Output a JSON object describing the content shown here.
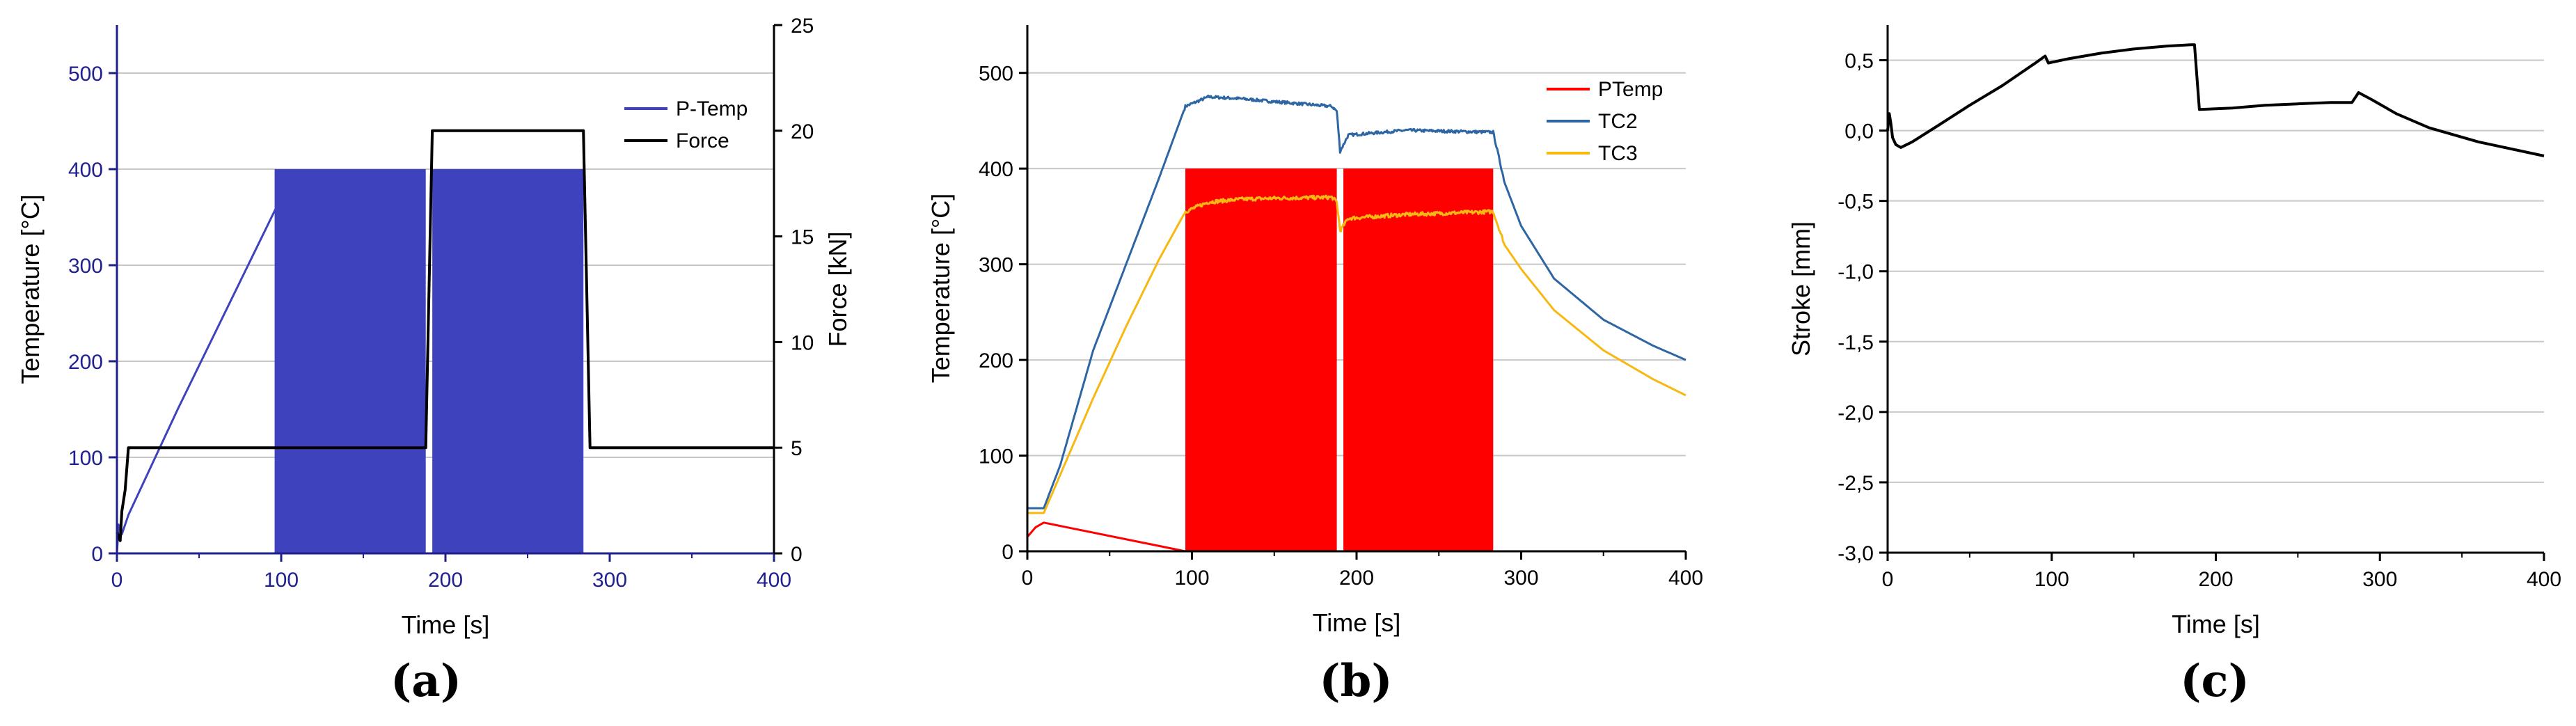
{
  "chart_data": [
    {
      "type": "line",
      "caption": "(a)",
      "xlabel": "Time [s]",
      "ylabel": "Temperature [°C]",
      "y2label": "Force [kN]",
      "xlim": [
        0,
        400
      ],
      "ylim": [
        0,
        550
      ],
      "y2lim": [
        0,
        25
      ],
      "xticks": [
        "0",
        "100",
        "200",
        "300",
        "400"
      ],
      "yticks": [
        "0",
        "100",
        "200",
        "300",
        "400",
        "500"
      ],
      "y2ticks": [
        "0",
        "5",
        "10",
        "15",
        "20",
        "25"
      ],
      "gridlines_y": [
        100,
        200,
        300,
        400,
        500
      ],
      "axis_color": "#1f1f8f",
      "series": [
        {
          "name": "P-Temp",
          "color": "#3f42bd",
          "axis": "left",
          "x": [
            0,
            1,
            3,
            7,
            37,
            97
          ],
          "y": [
            0,
            30,
            20,
            40,
            150,
            360
          ],
          "pulse_bands": [
            {
              "x_start": 96,
              "x_end": 188,
              "y_min": 0,
              "y_max": 400
            },
            {
              "x_start": 192,
              "x_end": 284,
              "y_min": 0,
              "y_max": 400
            }
          ]
        },
        {
          "name": "Force",
          "color": "#000000",
          "axis": "right",
          "x": [
            0,
            2,
            3,
            5,
            7,
            188,
            192,
            284,
            288,
            400
          ],
          "y": [
            1,
            0.6,
            2,
            3,
            5,
            5,
            20,
            20,
            5,
            5
          ]
        }
      ]
    },
    {
      "type": "line",
      "caption": "(b)",
      "xlabel": "Time [s]",
      "ylabel": "Temperature [°C]",
      "xlim": [
        0,
        400
      ],
      "ylim": [
        0,
        550
      ],
      "xticks": [
        "0",
        "100",
        "200",
        "300",
        "400"
      ],
      "yticks": [
        "0",
        "100",
        "200",
        "300",
        "400",
        "500"
      ],
      "gridlines_y": [
        100,
        200,
        300,
        400,
        500
      ],
      "series": [
        {
          "name": "PTemp",
          "color": "#ff0000",
          "x": [
            0,
            5,
            10,
            96,
            96,
            188,
            192,
            283,
            283,
            400
          ],
          "y": [
            15,
            25,
            30,
            0,
            0,
            0,
            0,
            0,
            0,
            0
          ],
          "pulse_bands": [
            {
              "x_start": 96,
              "x_end": 188,
              "y_min": 0,
              "y_max": 400
            },
            {
              "x_start": 192,
              "x_end": 283,
              "y_min": 0,
              "y_max": 400
            }
          ]
        },
        {
          "name": "TC2",
          "color": "#2e66a3",
          "x": [
            0,
            10,
            20,
            40,
            60,
            80,
            96,
            110,
            130,
            150,
            185,
            188,
            190,
            195,
            230,
            283,
            290,
            300,
            320,
            350,
            380,
            400
          ],
          "y": [
            45,
            45,
            90,
            210,
            300,
            390,
            465,
            475,
            473,
            470,
            465,
            460,
            418,
            435,
            440,
            438,
            385,
            340,
            285,
            242,
            215,
            200
          ],
          "noise": 3
        },
        {
          "name": "TC3",
          "color": "#f7b812",
          "x": [
            0,
            10,
            20,
            40,
            60,
            80,
            96,
            110,
            130,
            150,
            185,
            188,
            190,
            195,
            230,
            283,
            290,
            300,
            320,
            350,
            380,
            400
          ],
          "y": [
            40,
            40,
            80,
            160,
            235,
            305,
            355,
            365,
            368,
            369,
            370,
            365,
            335,
            348,
            352,
            355,
            320,
            295,
            252,
            210,
            180,
            163
          ],
          "noise": 4
        }
      ]
    },
    {
      "type": "line",
      "caption": "(c)",
      "xlabel": "Time [s]",
      "ylabel": "Stroke [mm]",
      "xlim": [
        0,
        400
      ],
      "ylim": [
        -3.0,
        0.75
      ],
      "xticks": [
        "0",
        "100",
        "200",
        "300",
        "400"
      ],
      "yticks": [
        "-3,0",
        "-2,5",
        "-2,0",
        "-1,5",
        "-1,0",
        "-0,5",
        "0,0",
        "0,5"
      ],
      "ytick_values": [
        -3.0,
        -2.5,
        -2.0,
        -1.5,
        -1.0,
        -0.5,
        0.0,
        0.5
      ],
      "gridlines_y": [
        -3.0,
        -2.5,
        -2.0,
        -1.5,
        -1.0,
        -0.5,
        0.0,
        0.5
      ],
      "series": [
        {
          "name": "Stroke",
          "color": "#000000",
          "x": [
            0,
            1,
            2,
            3,
            5,
            8,
            15,
            30,
            50,
            70,
            90,
            96,
            98,
            110,
            130,
            150,
            170,
            185,
            187,
            190,
            210,
            230,
            250,
            270,
            283,
            287,
            295,
            310,
            330,
            360,
            400
          ],
          "y": [
            0.0,
            0.12,
            0.05,
            -0.05,
            -0.1,
            -0.12,
            -0.08,
            0.03,
            0.18,
            0.32,
            0.48,
            0.53,
            0.48,
            0.51,
            0.55,
            0.58,
            0.6,
            0.61,
            0.61,
            0.15,
            0.16,
            0.18,
            0.19,
            0.2,
            0.2,
            0.27,
            0.22,
            0.12,
            0.02,
            -0.08,
            -0.18
          ]
        }
      ]
    }
  ]
}
